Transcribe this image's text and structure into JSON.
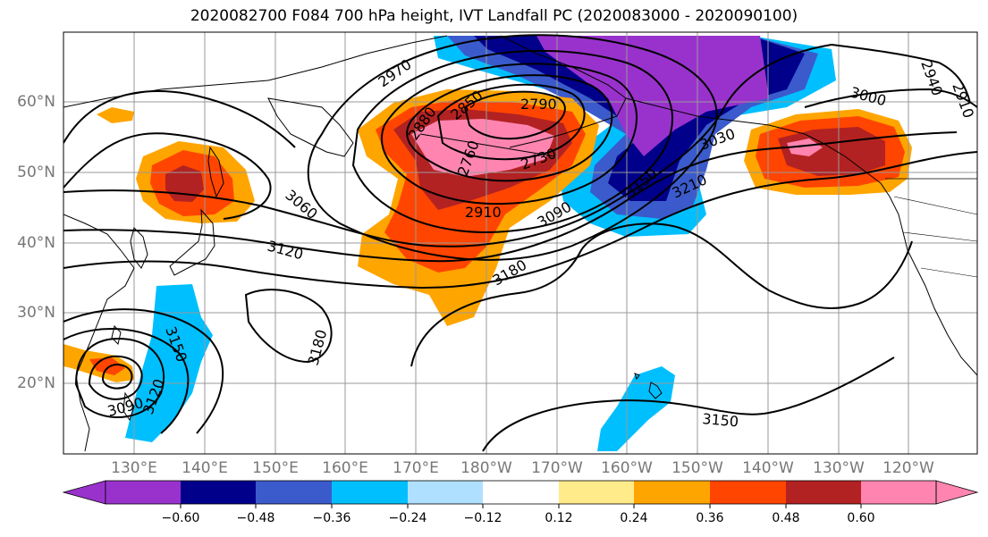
{
  "title": "2020082700 F084 700 hPa height, IVT Landfall PC (2020083000 - 2020090100)",
  "map": {
    "lat_labels": [
      "60°N",
      "50°N",
      "40°N",
      "30°N",
      "20°N"
    ],
    "lon_labels": [
      "130°E",
      "140°E",
      "150°E",
      "160°E",
      "170°E",
      "180°W",
      "170°W",
      "160°W",
      "150°W",
      "140°W",
      "130°W",
      "120°W"
    ]
  },
  "contour_labels": [
    "2970",
    "2880",
    "2850",
    "2790",
    "2760",
    "2730",
    "2910",
    "3060",
    "3120",
    "3180",
    "3090",
    "3150",
    "3210",
    "3030",
    "3000",
    "2940",
    "2910",
    "3150",
    "3180",
    "3090",
    "3120",
    "3150"
  ],
  "colorbar": {
    "ticks": [
      "−0.60",
      "−0.48",
      "−0.36",
      "−0.24",
      "−0.12",
      "0.12",
      "0.24",
      "0.36",
      "0.48",
      "0.60"
    ],
    "colors": [
      "#9932cc",
      "#00008b",
      "#3b5bcc",
      "#00bfff",
      "#b0e0ff",
      "#ffffff",
      "#ffeb8a",
      "#ffa500",
      "#ff4500",
      "#b22222",
      "#ff85b0"
    ]
  },
  "colors": {
    "land_outline": "#000000",
    "grid": "#999999",
    "contour": "#000000"
  }
}
